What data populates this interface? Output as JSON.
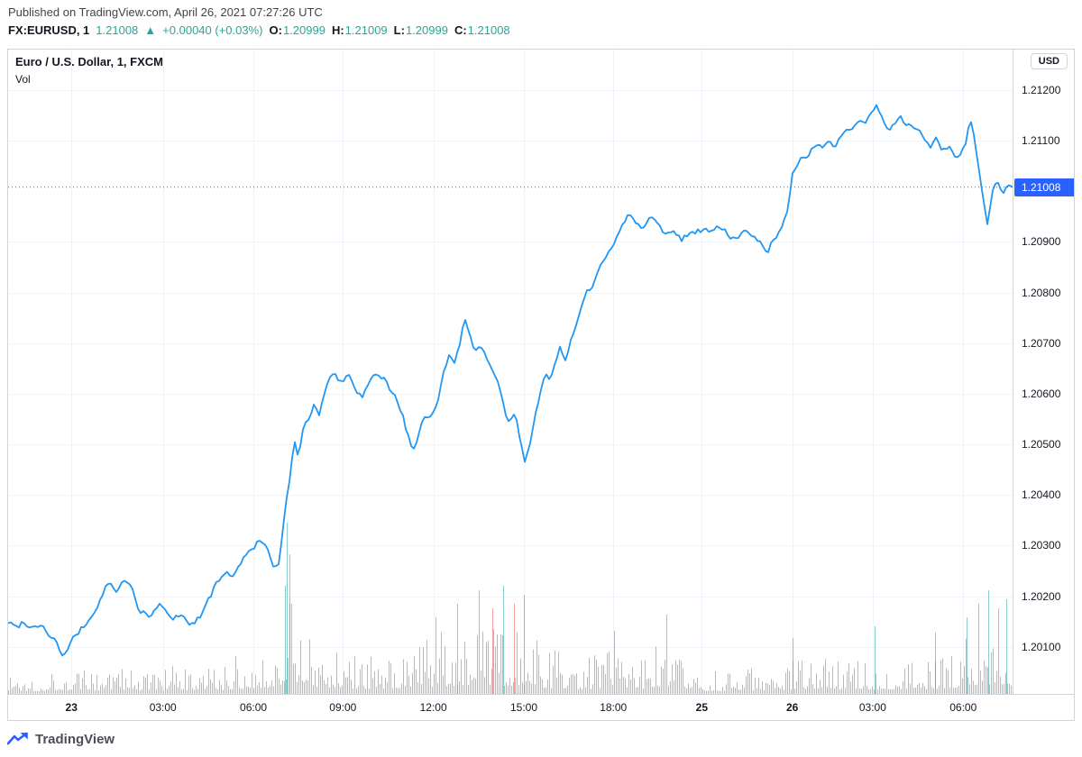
{
  "page": {
    "published_line": "Published on TradingView.com, April 26, 2021 07:27:26 UTC"
  },
  "symbol_bar": {
    "symbol": "FX:EURUSD, 1",
    "last_price": "1.21008",
    "change_icon": "▲",
    "change": "+0.00040 (+0.03%)",
    "up_color": "#26a69a",
    "ohlc": [
      {
        "label": "O:",
        "value": "1.20999"
      },
      {
        "label": "H:",
        "value": "1.21009"
      },
      {
        "label": "L:",
        "value": "1.20999"
      },
      {
        "label": "C:",
        "value": "1.21008"
      }
    ]
  },
  "chart": {
    "legend_title": "Euro / U.S. Dollar, 1, FXCM",
    "legend_vol": "Vol",
    "currency_badge": "USD",
    "last_price_label": "1.21008"
  },
  "footer": {
    "brand": "TradingView"
  },
  "chart_data": {
    "type": "line",
    "title": "Euro / U.S. Dollar, 1, FXCM",
    "symbol": "FX:EURUSD",
    "interval": "1",
    "exchange": "FXCM",
    "open": 1.20999,
    "high": 1.21009,
    "low": 1.20999,
    "close": 1.21008,
    "last_price": 1.21008,
    "line_color": "#2196f3",
    "accent_color": "#2962ff",
    "grid_color": "#f0f3fa",
    "noise_amplitude": 0.00013,
    "price_axis": {
      "min": 1.20007,
      "max": 1.2128,
      "ticks": [
        {
          "price": 1.212,
          "label": "1.21200"
        },
        {
          "price": 1.211,
          "label": "1.21100"
        },
        {
          "price": 1.209,
          "label": "1.20900"
        },
        {
          "price": 1.208,
          "label": "1.20800"
        },
        {
          "price": 1.207,
          "label": "1.20700"
        },
        {
          "price": 1.206,
          "label": "1.20600"
        },
        {
          "price": 1.205,
          "label": "1.20500"
        },
        {
          "price": 1.204,
          "label": "1.20400"
        },
        {
          "price": 1.203,
          "label": "1.20300"
        },
        {
          "price": 1.202,
          "label": "1.20200"
        },
        {
          "price": 1.201,
          "label": "1.20100"
        }
      ]
    },
    "time_axis": {
      "ticks": [
        {
          "t": 0.063,
          "label": "23",
          "bold": true
        },
        {
          "t": 0.154,
          "label": "03:00",
          "bold": false
        },
        {
          "t": 0.244,
          "label": "06:00",
          "bold": false
        },
        {
          "t": 0.333,
          "label": "09:00",
          "bold": false
        },
        {
          "t": 0.423,
          "label": "12:00",
          "bold": false
        },
        {
          "t": 0.513,
          "label": "15:00",
          "bold": false
        },
        {
          "t": 0.602,
          "label": "18:00",
          "bold": false
        },
        {
          "t": 0.69,
          "label": "25",
          "bold": true
        },
        {
          "t": 0.78,
          "label": "26",
          "bold": true
        },
        {
          "t": 0.86,
          "label": "03:00",
          "bold": false
        },
        {
          "t": 0.95,
          "label": "06:00",
          "bold": false
        }
      ]
    },
    "price_series": [
      [
        0.0,
        1.2015
      ],
      [
        0.008,
        1.20138
      ],
      [
        0.016,
        1.20152
      ],
      [
        0.024,
        1.2014
      ],
      [
        0.032,
        1.20148
      ],
      [
        0.04,
        1.20128
      ],
      [
        0.048,
        1.2011
      ],
      [
        0.055,
        1.20078
      ],
      [
        0.062,
        1.20105
      ],
      [
        0.072,
        1.20132
      ],
      [
        0.082,
        1.20155
      ],
      [
        0.092,
        1.20195
      ],
      [
        0.1,
        1.20228
      ],
      [
        0.108,
        1.20205
      ],
      [
        0.116,
        1.20232
      ],
      [
        0.124,
        1.20212
      ],
      [
        0.132,
        1.20168
      ],
      [
        0.142,
        1.20158
      ],
      [
        0.152,
        1.20185
      ],
      [
        0.162,
        1.20152
      ],
      [
        0.172,
        1.20168
      ],
      [
        0.182,
        1.20142
      ],
      [
        0.192,
        1.20165
      ],
      [
        0.202,
        1.20205
      ],
      [
        0.212,
        1.20238
      ],
      [
        0.222,
        1.20242
      ],
      [
        0.232,
        1.20265
      ],
      [
        0.242,
        1.20298
      ],
      [
        0.25,
        1.20312
      ],
      [
        0.258,
        1.20288
      ],
      [
        0.264,
        1.20248
      ],
      [
        0.27,
        1.20272
      ],
      [
        0.275,
        1.2036
      ],
      [
        0.28,
        1.2043
      ],
      [
        0.285,
        1.20505
      ],
      [
        0.289,
        1.20478
      ],
      [
        0.294,
        1.20542
      ],
      [
        0.299,
        1.20552
      ],
      [
        0.304,
        1.20582
      ],
      [
        0.309,
        1.20558
      ],
      [
        0.314,
        1.20598
      ],
      [
        0.32,
        1.20628
      ],
      [
        0.326,
        1.20642
      ],
      [
        0.332,
        1.20618
      ],
      [
        0.338,
        1.2064
      ],
      [
        0.344,
        1.20608
      ],
      [
        0.352,
        1.20592
      ],
      [
        0.36,
        1.20618
      ],
      [
        0.368,
        1.20638
      ],
      [
        0.374,
        1.20628
      ],
      [
        0.38,
        1.20608
      ],
      [
        0.386,
        1.20588
      ],
      [
        0.392,
        1.20565
      ],
      [
        0.397,
        1.20522
      ],
      [
        0.402,
        1.20488
      ],
      [
        0.407,
        1.20502
      ],
      [
        0.412,
        1.20538
      ],
      [
        0.418,
        1.20552
      ],
      [
        0.424,
        1.20572
      ],
      [
        0.429,
        1.20605
      ],
      [
        0.434,
        1.20652
      ],
      [
        0.439,
        1.20678
      ],
      [
        0.444,
        1.20662
      ],
      [
        0.449,
        1.207
      ],
      [
        0.454,
        1.20748
      ],
      [
        0.459,
        1.20722
      ],
      [
        0.464,
        1.20692
      ],
      [
        0.469,
        1.20705
      ],
      [
        0.474,
        1.20678
      ],
      [
        0.479,
        1.20652
      ],
      [
        0.484,
        1.20638
      ],
      [
        0.489,
        1.20608
      ],
      [
        0.494,
        1.20562
      ],
      [
        0.499,
        1.20542
      ],
      [
        0.504,
        1.20568
      ],
      [
        0.509,
        1.20518
      ],
      [
        0.514,
        1.20462
      ],
      [
        0.519,
        1.20502
      ],
      [
        0.524,
        1.20558
      ],
      [
        0.529,
        1.20598
      ],
      [
        0.534,
        1.20638
      ],
      [
        0.539,
        1.20618
      ],
      [
        0.544,
        1.20658
      ],
      [
        0.549,
        1.20688
      ],
      [
        0.554,
        1.20668
      ],
      [
        0.559,
        1.20698
      ],
      [
        0.564,
        1.20728
      ],
      [
        0.569,
        1.20758
      ],
      [
        0.574,
        1.20788
      ],
      [
        0.579,
        1.20808
      ],
      [
        0.584,
        1.20828
      ],
      [
        0.589,
        1.20848
      ],
      [
        0.594,
        1.20868
      ],
      [
        0.599,
        1.20888
      ],
      [
        0.604,
        1.20908
      ],
      [
        0.609,
        1.20928
      ],
      [
        0.614,
        1.20948
      ],
      [
        0.619,
        1.20958
      ],
      [
        0.624,
        1.20938
      ],
      [
        0.63,
        1.20928
      ],
      [
        0.638,
        1.20948
      ],
      [
        0.646,
        1.20938
      ],
      [
        0.654,
        1.20918
      ],
      [
        0.662,
        1.20928
      ],
      [
        0.67,
        1.20908
      ],
      [
        0.68,
        1.20922
      ],
      [
        0.69,
        1.20925
      ],
      [
        0.7,
        1.20918
      ],
      [
        0.71,
        1.20928
      ],
      [
        0.72,
        1.20908
      ],
      [
        0.73,
        1.20915
      ],
      [
        0.74,
        1.20918
      ],
      [
        0.748,
        1.20898
      ],
      [
        0.755,
        1.20878
      ],
      [
        0.762,
        1.20908
      ],
      [
        0.77,
        1.20928
      ],
      [
        0.776,
        1.20958
      ],
      [
        0.78,
        1.21028
      ],
      [
        0.785,
        1.21052
      ],
      [
        0.79,
        1.21068
      ],
      [
        0.795,
        1.21058
      ],
      [
        0.8,
        1.21082
      ],
      [
        0.805,
        1.21098
      ],
      [
        0.81,
        1.21088
      ],
      [
        0.815,
        1.21108
      ],
      [
        0.82,
        1.21088
      ],
      [
        0.825,
        1.21098
      ],
      [
        0.83,
        1.21112
      ],
      [
        0.835,
        1.21128
      ],
      [
        0.84,
        1.21118
      ],
      [
        0.846,
        1.21142
      ],
      [
        0.852,
        1.21132
      ],
      [
        0.858,
        1.21148
      ],
      [
        0.864,
        1.21162
      ],
      [
        0.87,
        1.21138
      ],
      [
        0.876,
        1.21118
      ],
      [
        0.882,
        1.21132
      ],
      [
        0.888,
        1.21142
      ],
      [
        0.894,
        1.21128
      ],
      [
        0.9,
        1.21132
      ],
      [
        0.906,
        1.21128
      ],
      [
        0.912,
        1.21102
      ],
      [
        0.918,
        1.21092
      ],
      [
        0.924,
        1.21102
      ],
      [
        0.93,
        1.21082
      ],
      [
        0.936,
        1.21092
      ],
      [
        0.942,
        1.21062
      ],
      [
        0.948,
        1.21082
      ],
      [
        0.953,
        1.21092
      ],
      [
        0.957,
        1.21142
      ],
      [
        0.961,
        1.21102
      ],
      [
        0.965,
        1.21052
      ],
      [
        0.969,
        1.20992
      ],
      [
        0.974,
        1.20932
      ],
      [
        0.979,
        1.21002
      ],
      [
        0.984,
        1.21022
      ],
      [
        0.989,
        1.20992
      ],
      [
        0.994,
        1.21012
      ],
      [
        1.0,
        1.21008
      ]
    ],
    "volume": {
      "up_color": "rgba(38,166,154,0.55)",
      "down_color": "rgba(239,83,80,0.55)",
      "envelope": [
        [
          0,
          28
        ],
        [
          0.03,
          24
        ],
        [
          0.055,
          36
        ],
        [
          0.08,
          26
        ],
        [
          0.1,
          40
        ],
        [
          0.13,
          30
        ],
        [
          0.16,
          32
        ],
        [
          0.19,
          28
        ],
        [
          0.22,
          40
        ],
        [
          0.245,
          55
        ],
        [
          0.262,
          48
        ],
        [
          0.27,
          80
        ],
        [
          0.278,
          150
        ],
        [
          0.285,
          110
        ],
        [
          0.292,
          80
        ],
        [
          0.3,
          65
        ],
        [
          0.32,
          55
        ],
        [
          0.34,
          48
        ],
        [
          0.36,
          45
        ],
        [
          0.38,
          50
        ],
        [
          0.4,
          58
        ],
        [
          0.42,
          65
        ],
        [
          0.44,
          72
        ],
        [
          0.46,
          80
        ],
        [
          0.48,
          78
        ],
        [
          0.5,
          75
        ],
        [
          0.515,
          80
        ],
        [
          0.53,
          58
        ],
        [
          0.55,
          48
        ],
        [
          0.57,
          44
        ],
        [
          0.59,
          52
        ],
        [
          0.61,
          62
        ],
        [
          0.63,
          50
        ],
        [
          0.65,
          60
        ],
        [
          0.67,
          38
        ],
        [
          0.69,
          30
        ],
        [
          0.71,
          26
        ],
        [
          0.73,
          28
        ],
        [
          0.75,
          36
        ],
        [
          0.77,
          32
        ],
        [
          0.79,
          48
        ],
        [
          0.81,
          40
        ],
        [
          0.83,
          42
        ],
        [
          0.85,
          44
        ],
        [
          0.87,
          42
        ],
        [
          0.89,
          44
        ],
        [
          0.91,
          42
        ],
        [
          0.93,
          48
        ],
        [
          0.95,
          62
        ],
        [
          0.96,
          70
        ],
        [
          0.97,
          85
        ],
        [
          0.98,
          92
        ],
        [
          0.99,
          88
        ],
        [
          1,
          70
        ]
      ],
      "spikes": [
        [
          0.2755,
          120,
          "g"
        ],
        [
          0.2775,
          190,
          "g"
        ],
        [
          0.2795,
          155,
          "g"
        ],
        [
          0.2815,
          100,
          "r"
        ],
        [
          0.425,
          85,
          "g"
        ],
        [
          0.447,
          100,
          "g"
        ],
        [
          0.468,
          115,
          "g"
        ],
        [
          0.482,
          95,
          "r"
        ],
        [
          0.492,
          120,
          "g"
        ],
        [
          0.503,
          100,
          "r"
        ],
        [
          0.513,
          110,
          "g"
        ],
        [
          0.603,
          70,
          "g"
        ],
        [
          0.655,
          88,
          "r"
        ],
        [
          0.78,
          62,
          "g"
        ],
        [
          0.862,
          75,
          "g"
        ],
        [
          0.922,
          68,
          "g"
        ],
        [
          0.953,
          85,
          "g"
        ],
        [
          0.965,
          100,
          "g"
        ],
        [
          0.975,
          115,
          "g"
        ],
        [
          0.985,
          95,
          "r"
        ],
        [
          0.993,
          105,
          "g"
        ]
      ]
    }
  }
}
